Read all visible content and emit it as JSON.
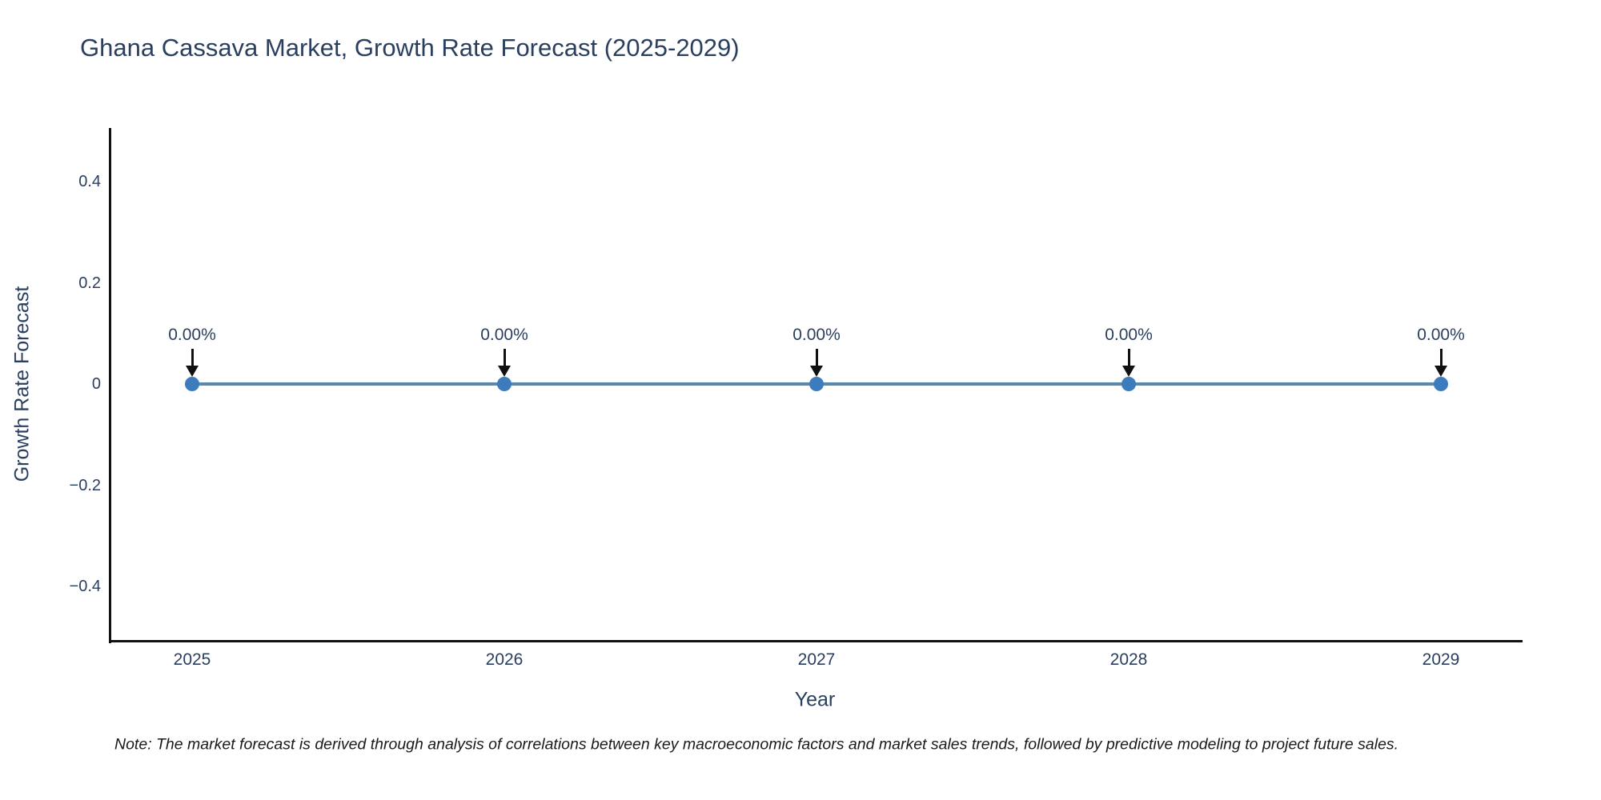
{
  "title": "Ghana Cassava Market, Growth Rate Forecast (2025-2029)",
  "note": "Note: The market forecast is derived through analysis of correlations between key macroeconomic factors and market sales trends, followed by predictive modeling to project future sales.",
  "chart_data": {
    "type": "line",
    "title": "Ghana Cassava Market, Growth Rate Forecast (2025-2029)",
    "xlabel": "Year",
    "ylabel": "Growth Rate Forecast",
    "x": [
      2025,
      2026,
      2027,
      2028,
      2029
    ],
    "series": [
      {
        "name": "Growth Rate Forecast",
        "values": [
          0,
          0,
          0,
          0,
          0
        ]
      }
    ],
    "point_labels": [
      "0.00%",
      "0.00%",
      "0.00%",
      "0.00%",
      "0.00%"
    ],
    "ylim": [
      -0.5,
      0.5
    ],
    "ytick_labels": [
      "0.4",
      "0.2",
      "0",
      "−0.2",
      "−0.4"
    ],
    "ytick_values": [
      0.4,
      0.2,
      0,
      -0.2,
      -0.4
    ],
    "grid": false,
    "legend_position": "none",
    "colors": {
      "text": "#2a3f5f",
      "line": "#5b89ae",
      "marker": "#3c7cbc",
      "axis": "#111111",
      "annotation_arrow": "#111111",
      "note_text": "#1a1a1a"
    }
  }
}
